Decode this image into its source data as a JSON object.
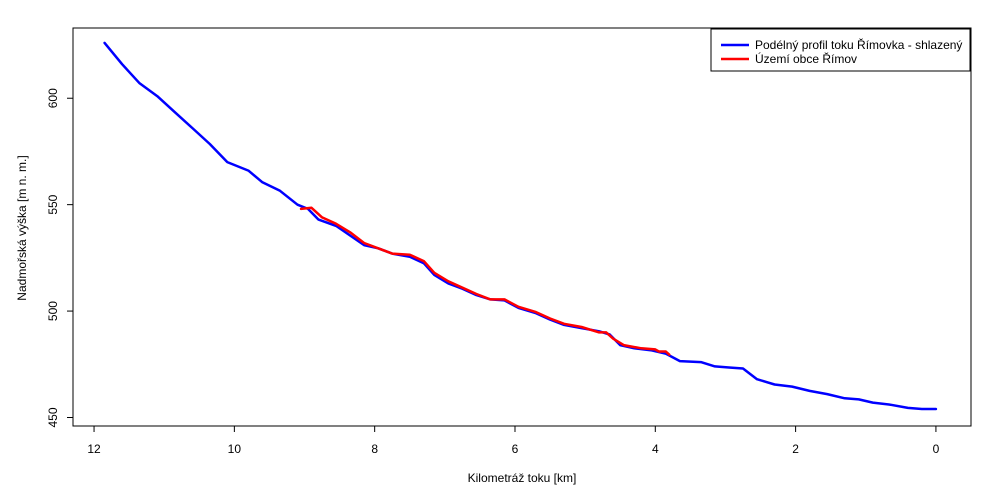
{
  "chart_data": {
    "type": "line",
    "title": "",
    "xlabel": "Kilometráž toku [km]",
    "ylabel": "Nadmořská výška [m n. m.]",
    "xlim": [
      12.3,
      -0.5
    ],
    "ylim": [
      446,
      633
    ],
    "x_ticks": [
      12,
      10,
      8,
      6,
      4,
      2,
      0
    ],
    "y_ticks": [
      450,
      500,
      550,
      600
    ],
    "grid": false,
    "legend_position": "top-right",
    "series": [
      {
        "name": "Podélný profil toku Římovka - shlazený",
        "color": "#0000ff",
        "points": [
          [
            11.85,
            626
          ],
          [
            11.6,
            616
          ],
          [
            11.35,
            607
          ],
          [
            11.1,
            601
          ],
          [
            10.85,
            593.5
          ],
          [
            10.6,
            586
          ],
          [
            10.35,
            578.5
          ],
          [
            10.1,
            570
          ],
          [
            9.8,
            566
          ],
          [
            9.6,
            560.5
          ],
          [
            9.35,
            556.5
          ],
          [
            9.1,
            550
          ],
          [
            8.95,
            548
          ],
          [
            8.8,
            543
          ],
          [
            8.55,
            540
          ],
          [
            8.35,
            535.5
          ],
          [
            8.15,
            531
          ],
          [
            7.95,
            529.5
          ],
          [
            7.75,
            527
          ],
          [
            7.5,
            525.5
          ],
          [
            7.3,
            522.5
          ],
          [
            7.15,
            517
          ],
          [
            6.95,
            513
          ],
          [
            6.75,
            510.5
          ],
          [
            6.55,
            507.5
          ],
          [
            6.35,
            505.5
          ],
          [
            6.15,
            505
          ],
          [
            5.95,
            501.5
          ],
          [
            5.7,
            499
          ],
          [
            5.5,
            496
          ],
          [
            5.3,
            493.5
          ],
          [
            5.05,
            492
          ],
          [
            4.8,
            490.5
          ],
          [
            4.65,
            489
          ],
          [
            4.5,
            484
          ],
          [
            4.3,
            482.5
          ],
          [
            4.05,
            481.5
          ],
          [
            3.85,
            480
          ],
          [
            3.65,
            476.5
          ],
          [
            3.35,
            476
          ],
          [
            3.15,
            474
          ],
          [
            2.95,
            473.5
          ],
          [
            2.75,
            473
          ],
          [
            2.55,
            468
          ],
          [
            2.3,
            465.5
          ],
          [
            2.05,
            464.5
          ],
          [
            1.8,
            462.5
          ],
          [
            1.55,
            461
          ],
          [
            1.3,
            459
          ],
          [
            1.1,
            458.5
          ],
          [
            0.9,
            457
          ],
          [
            0.65,
            456
          ],
          [
            0.4,
            454.5
          ],
          [
            0.2,
            454
          ],
          [
            0.0,
            454
          ]
        ]
      },
      {
        "name": "Území obce Římov",
        "color": "#ff0000",
        "points": [
          [
            9.05,
            548
          ],
          [
            8.9,
            548.5
          ],
          [
            8.75,
            544
          ],
          [
            8.55,
            541
          ],
          [
            8.35,
            537
          ],
          [
            8.15,
            532
          ],
          [
            7.95,
            529.5
          ],
          [
            7.75,
            527
          ],
          [
            7.5,
            526.5
          ],
          [
            7.3,
            523.5
          ],
          [
            7.15,
            518
          ],
          [
            6.95,
            514
          ],
          [
            6.75,
            511
          ],
          [
            6.55,
            508
          ],
          [
            6.35,
            505.5
          ],
          [
            6.15,
            505.5
          ],
          [
            5.95,
            502
          ],
          [
            5.7,
            499.5
          ],
          [
            5.5,
            496.5
          ],
          [
            5.3,
            494
          ],
          [
            5.05,
            492.5
          ],
          [
            4.8,
            490
          ],
          [
            4.7,
            490
          ],
          [
            4.6,
            487
          ],
          [
            4.45,
            484
          ],
          [
            4.2,
            482.5
          ],
          [
            4.0,
            482
          ],
          [
            3.95,
            481
          ],
          [
            3.85,
            481
          ],
          [
            3.8,
            479.5
          ]
        ]
      }
    ]
  }
}
